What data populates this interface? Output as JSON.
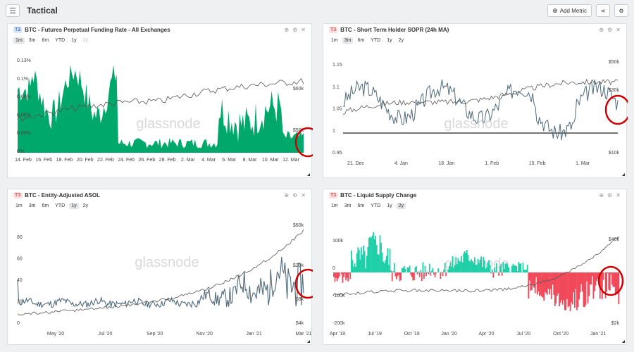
{
  "page": {
    "title": "Tactical",
    "add_metric_label": "Add Metric",
    "menu_icon": "menu-icon",
    "share_icon": "share-icon",
    "settings_icon": "gear-icon"
  },
  "colors": {
    "green": "#00a86b",
    "teal": "#1fcfa8",
    "red": "#f04a5a",
    "slate": "#4f6a7a",
    "price": "#555555",
    "circle": "#d00000"
  },
  "watermark": "glassnode",
  "panels": [
    {
      "tier": "T2",
      "title": "BTC - Futures Perpetual Funding Rate - All Exchanges",
      "ranges": [
        "1m",
        "3m",
        "6m",
        "YTD",
        "1y",
        "2y"
      ],
      "active_range": "1m",
      "disabled_range": "2y",
      "left_ticks": [
        "0.13%",
        "0.1%",
        "0.08%",
        "0.05%",
        "0.03%",
        "0%"
      ],
      "right_ticks": [
        "$60k",
        "$50k"
      ],
      "x_ticks": [
        "14. Feb",
        "16. Feb",
        "18. Feb",
        "20. Feb",
        "22. Feb",
        "24. Feb",
        "26. Feb",
        "28. Feb",
        "2. Mar",
        "4. Mar",
        "6. Mar",
        "8. Mar",
        "10. Mar",
        "12. Mar"
      ]
    },
    {
      "tier": "T3",
      "title": "BTC - Short Term Holder SOPR (24h MA)",
      "ranges": [
        "1m",
        "3m",
        "6m",
        "YTD",
        "1y",
        "2y"
      ],
      "active_range": "3m",
      "disabled_range": "",
      "left_ticks": [
        "1.15",
        "1.1",
        "1.05",
        "1",
        "0.95"
      ],
      "right_ticks": [
        "$50k",
        "$30k",
        "$10k"
      ],
      "x_ticks": [
        "21. Dec",
        "4. Jan",
        "18. Jan",
        "1. Feb",
        "15. Feb",
        "1. Mar"
      ]
    },
    {
      "tier": "T3",
      "title": "BTC - Entity-Adjusted ASOL",
      "ranges": [
        "1m",
        "3m",
        "6m",
        "YTD",
        "1y",
        "2y"
      ],
      "active_range": "1y",
      "disabled_range": "",
      "left_ticks": [
        "80",
        "60",
        "40",
        "20",
        "0"
      ],
      "right_ticks": [
        "$60k",
        "$20k",
        "$8k",
        "$4k"
      ],
      "x_ticks": [
        "May '20",
        "Jul '20",
        "Sep '20",
        "Nov '20",
        "Jan '21",
        "Mar '21"
      ]
    },
    {
      "tier": "T3",
      "title": "BTC - Liquid Supply Change",
      "ranges": [
        "1m",
        "3m",
        "6m",
        "YTD",
        "1y",
        "2y"
      ],
      "active_range": "2y",
      "disabled_range": "",
      "left_ticks": [
        "100k",
        "0",
        "-100k",
        "-200k"
      ],
      "right_ticks": [
        "$40k",
        "$2k"
      ],
      "x_ticks": [
        "Apr '19",
        "Jul '19",
        "Oct '19",
        "Jan '20",
        "Apr '20",
        "Jul '20",
        "Oct '20",
        "Jan '21"
      ]
    }
  ]
}
